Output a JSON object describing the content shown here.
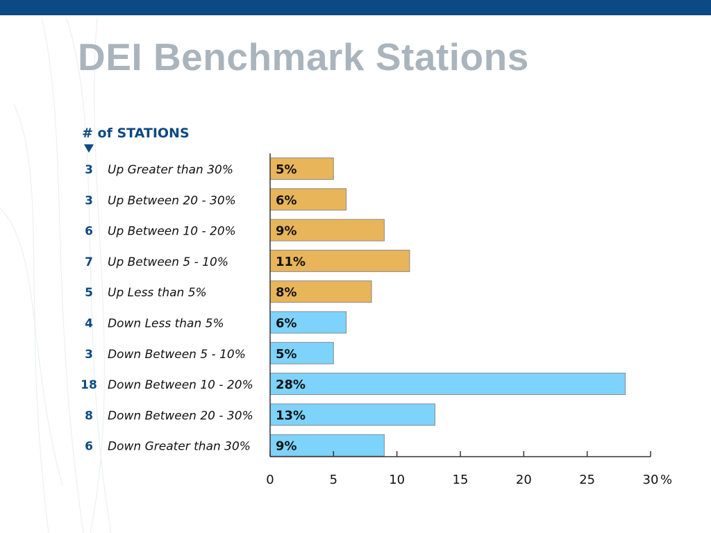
{
  "slide": {
    "title": "DEI Benchmark Stations"
  },
  "chart_data": {
    "type": "bar",
    "orientation": "horizontal",
    "count_column_header": "# of STATIONS",
    "categories": [
      "Up Greater than 30%",
      "Up Between 20 - 30%",
      "Up Between 10 - 20%",
      "Up Between 5 - 10%",
      "Up Less than 5%",
      "Down Less than 5%",
      "Down Between 5 - 10%",
      "Down Between 10 - 20%",
      "Down Between 20 - 30%",
      "Down Greater than 30%"
    ],
    "station_counts": [
      3,
      3,
      6,
      7,
      5,
      4,
      3,
      18,
      8,
      6
    ],
    "values": [
      5,
      6,
      9,
      11,
      8,
      6,
      5,
      28,
      13,
      9
    ],
    "data_labels": [
      "5%",
      "6%",
      "9%",
      "11%",
      "8%",
      "6%",
      "5%",
      "28%",
      "13%",
      "9%"
    ],
    "bar_colors": [
      "#e8b55a",
      "#e8b55a",
      "#e8b55a",
      "#e8b55a",
      "#e8b55a",
      "#7dd3fb",
      "#7dd3fb",
      "#7dd3fb",
      "#7dd3fb",
      "#7dd3fb"
    ],
    "x_ticks": [
      0,
      5,
      10,
      15,
      20,
      25,
      30
    ],
    "x_tick_labels": [
      "0",
      "5",
      "10",
      "15",
      "20",
      "25",
      "30"
    ],
    "x_unit": "%",
    "xlim": [
      0,
      30
    ],
    "grid": false,
    "colors": {
      "header": "#0b4a82",
      "count_text": "#0b4a82",
      "label_text": "#111111",
      "axis": "#333333"
    }
  }
}
